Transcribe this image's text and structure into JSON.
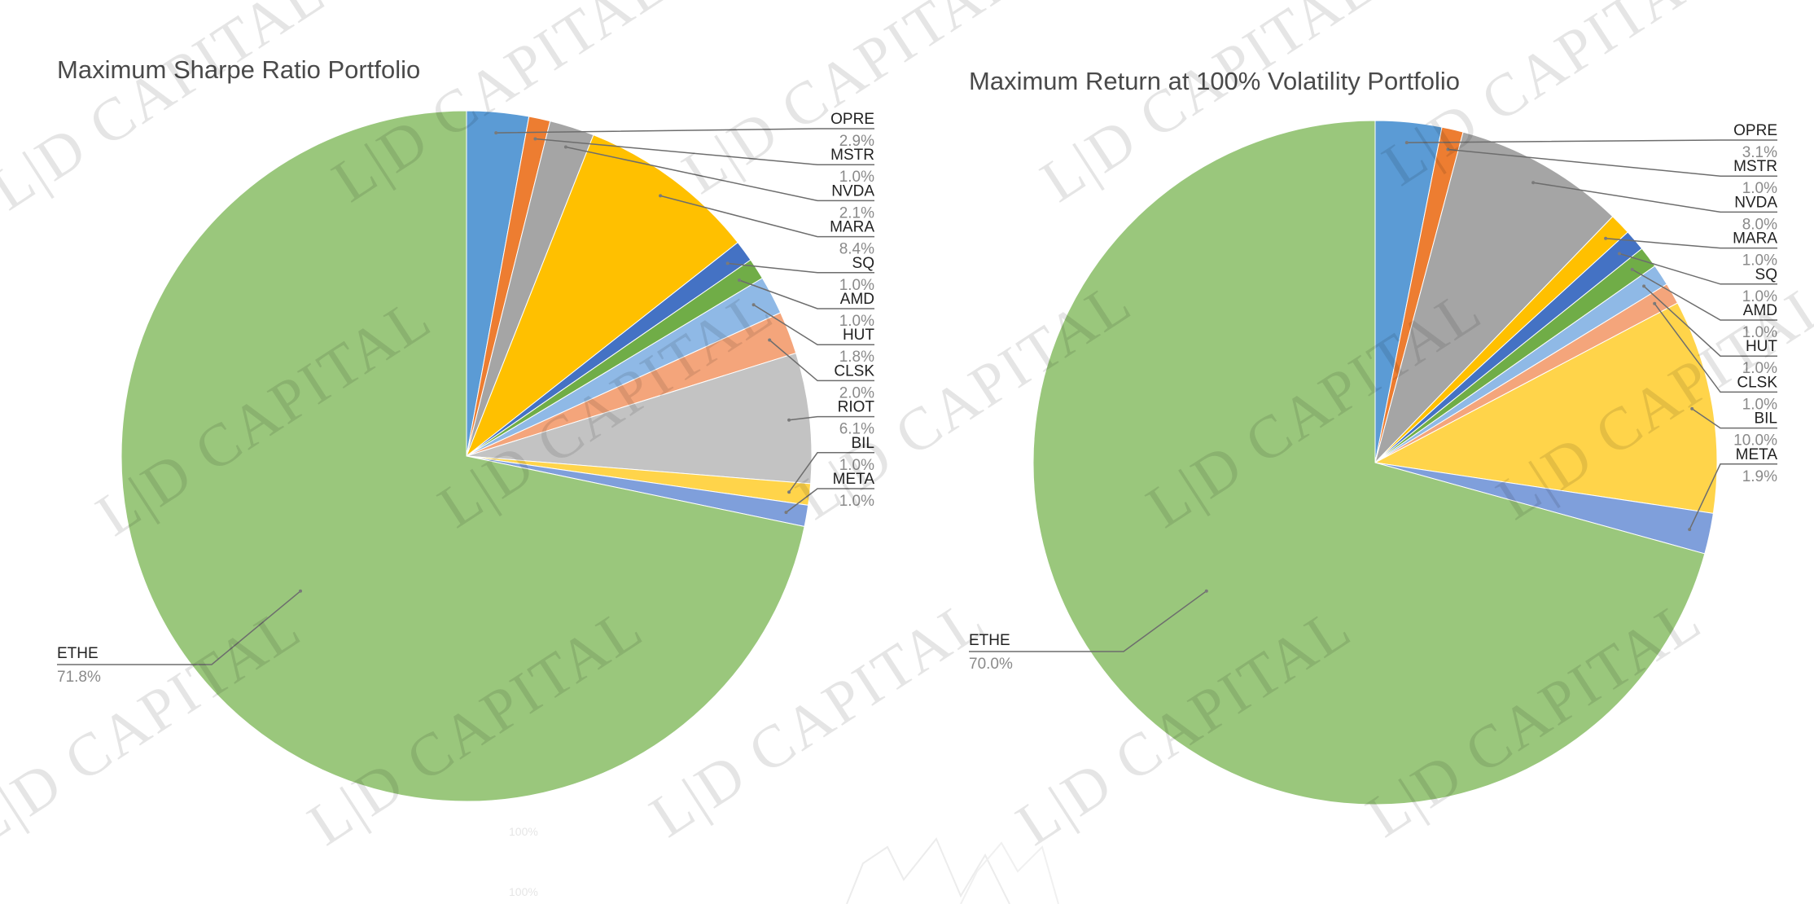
{
  "chart_data": [
    {
      "type": "pie",
      "title": "Maximum Sharpe Ratio Portfolio",
      "slices": [
        {
          "label": "OPRE",
          "value_text": "2.9%",
          "value": 2.9,
          "color": "#5b9bd5"
        },
        {
          "label": "MSTR",
          "value_text": "1.0%",
          "value": 1.0,
          "color": "#ed7d31"
        },
        {
          "label": "NVDA",
          "value_text": "2.1%",
          "value": 2.1,
          "color": "#a5a5a5"
        },
        {
          "label": "MARA",
          "value_text": "8.4%",
          "value": 8.4,
          "color": "#ffc000"
        },
        {
          "label": "SQ",
          "value_text": "1.0%",
          "value": 1.0,
          "color": "#4472c4"
        },
        {
          "label": "AMD",
          "value_text": "1.0%",
          "value": 1.0,
          "color": "#70ad47"
        },
        {
          "label": "HUT",
          "value_text": "1.8%",
          "value": 1.8,
          "color": "#8fb9e6"
        },
        {
          "label": "CLSK",
          "value_text": "2.0%",
          "value": 2.0,
          "color": "#f4a57b"
        },
        {
          "label": "RIOT",
          "value_text": "6.1%",
          "value": 6.1,
          "color": "#c3c3c3"
        },
        {
          "label": "BIL",
          "value_text": "1.0%",
          "value": 1.0,
          "color": "#ffd44a"
        },
        {
          "label": "META",
          "value_text": "1.0%",
          "value": 1.0,
          "color": "#7f9fdb"
        },
        {
          "label": "ETHE",
          "value_text": "71.8%",
          "value": 71.8,
          "color": "#9ac77c"
        }
      ]
    },
    {
      "type": "pie",
      "title": "Maximum Return at 100% Volatility Portfolio",
      "slices": [
        {
          "label": "OPRE",
          "value_text": "3.1%",
          "value": 3.1,
          "color": "#5b9bd5"
        },
        {
          "label": "MSTR",
          "value_text": "1.0%",
          "value": 1.0,
          "color": "#ed7d31"
        },
        {
          "label": "NVDA",
          "value_text": "8.0%",
          "value": 8.0,
          "color": "#a5a5a5"
        },
        {
          "label": "MARA",
          "value_text": "1.0%",
          "value": 1.0,
          "color": "#ffc000"
        },
        {
          "label": "SQ",
          "value_text": "1.0%",
          "value": 1.0,
          "color": "#4472c4"
        },
        {
          "label": "AMD",
          "value_text": "1.0%",
          "value": 1.0,
          "color": "#70ad47"
        },
        {
          "label": "HUT",
          "value_text": "1.0%",
          "value": 1.0,
          "color": "#8fb9e6"
        },
        {
          "label": "CLSK",
          "value_text": "1.0%",
          "value": 1.0,
          "color": "#f4a57b"
        },
        {
          "label": "BIL",
          "value_text": "10.0%",
          "value": 10.0,
          "color": "#ffd44a"
        },
        {
          "label": "META",
          "value_text": "1.9%",
          "value": 1.9,
          "color": "#7f9fdb"
        },
        {
          "label": "ETHE",
          "value_text": "70.0%",
          "value": 70.0,
          "color": "#9ac77c"
        }
      ]
    }
  ],
  "watermark": {
    "text": "L|D CAPITAL"
  },
  "background_chart": {
    "tick_top": "100%",
    "tick_bottom": "100%"
  }
}
